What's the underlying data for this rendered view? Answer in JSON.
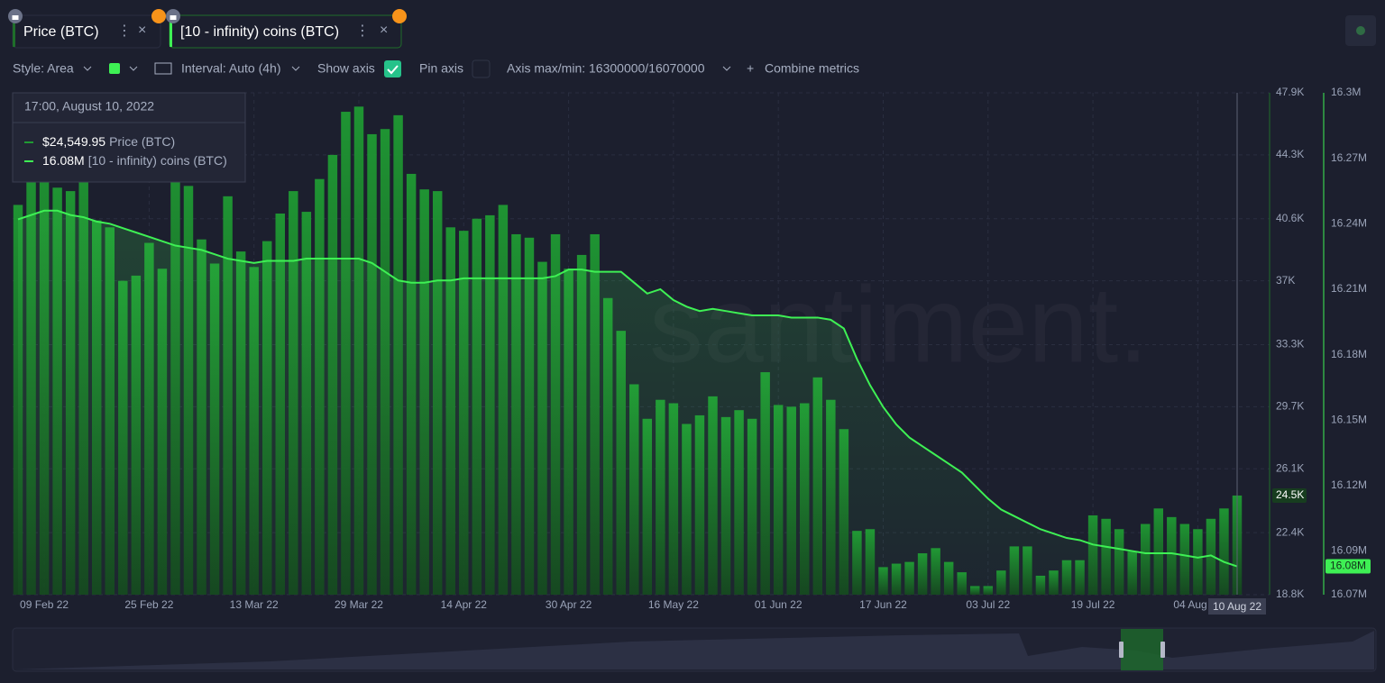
{
  "toolbar": {
    "style": "Style: Area",
    "interval": "Interval: Auto (4h)",
    "show_axis": "Show axis",
    "pin_axis": "Pin axis",
    "axis_maxmin": "Axis max/min: 16300000/16070000",
    "combine": "Combine metrics"
  },
  "chart_data": {
    "type": "combo",
    "watermark": "santiment.",
    "grid": true,
    "categories": [
      null,
      null,
      "09 Feb 22",
      null,
      null,
      null,
      null,
      null,
      null,
      null,
      "25 Feb 22",
      null,
      null,
      null,
      null,
      null,
      null,
      null,
      "13 Mar 22",
      null,
      null,
      null,
      null,
      null,
      null,
      null,
      "29 Mar 22",
      null,
      null,
      null,
      null,
      null,
      null,
      null,
      "14 Apr 22",
      null,
      null,
      null,
      null,
      null,
      null,
      null,
      "30 Apr 22",
      null,
      null,
      null,
      null,
      null,
      null,
      null,
      "16 May 22",
      null,
      null,
      null,
      null,
      null,
      null,
      null,
      "01 Jun 22",
      null,
      null,
      null,
      null,
      null,
      null,
      null,
      "17 Jun 22",
      null,
      null,
      null,
      null,
      null,
      null,
      null,
      "03 Jul 22",
      null,
      null,
      null,
      null,
      null,
      null,
      null,
      "19 Jul 22",
      null,
      null,
      null,
      null,
      null,
      null,
      null,
      "04 Aug 22",
      null,
      null,
      null
    ],
    "crosshair_label": "10 Aug 22",
    "ylim": [
      18800,
      47900
    ],
    "yticks": [
      {
        "value": 18800,
        "label": "18.8K"
      },
      {
        "value": 22400,
        "label": "22.4K"
      },
      {
        "value": 26100,
        "label": "26.1K"
      },
      {
        "value": 29700,
        "label": "29.7K"
      },
      {
        "value": 33300,
        "label": "33.3K"
      },
      {
        "value": 37000,
        "label": "37K"
      },
      {
        "value": 40600,
        "label": "40.6K"
      },
      {
        "value": 44300,
        "label": "44.3K"
      },
      {
        "value": 47900,
        "label": "47.9K"
      }
    ],
    "y2lim": [
      16070000,
      16300000
    ],
    "y2ticks": [
      {
        "value": 16070000,
        "label": "16.07M"
      },
      {
        "value": 16090000,
        "label": "16.09M"
      },
      {
        "value": 16120000,
        "label": "16.12M"
      },
      {
        "value": 16150000,
        "label": "16.15M"
      },
      {
        "value": 16180000,
        "label": "16.18M"
      },
      {
        "value": 16210000,
        "label": "16.21M"
      },
      {
        "value": 16240000,
        "label": "16.24M"
      },
      {
        "value": 16270000,
        "label": "16.27M"
      },
      {
        "value": 16300000,
        "label": "16.3M"
      }
    ],
    "series": [
      {
        "name": "Price (BTC)",
        "type": "bar",
        "color": "#1f9a33",
        "axis_label": "24.5K",
        "values": [
          41400,
          43800,
          44400,
          42400,
          42200,
          44500,
          40500,
          40100,
          37000,
          37300,
          39200,
          37700,
          44400,
          42500,
          39400,
          38000,
          41900,
          38700,
          37800,
          39300,
          40900,
          42200,
          41000,
          42900,
          44300,
          46800,
          47100,
          45500,
          45800,
          46600,
          43200,
          42300,
          42200,
          40100,
          39900,
          40600,
          40800,
          41400,
          39700,
          39500,
          38100,
          39700,
          37700,
          38500,
          39700,
          36000,
          34100,
          31000,
          29000,
          30100,
          29900,
          28700,
          29200,
          30300,
          29100,
          29500,
          29000,
          31700,
          29800,
          29700,
          29900,
          31400,
          30100,
          28400,
          22500,
          22600,
          20400,
          20600,
          20700,
          21200,
          21500,
          20700,
          20100,
          19300,
          19300,
          20200,
          21600,
          21600,
          19900,
          20200,
          20800,
          20800,
          23400,
          23200,
          22600,
          21300,
          22900,
          23800,
          23300,
          22900,
          22600,
          23200,
          23800,
          24549.95
        ]
      },
      {
        "name": "[10 - infinity) coins (BTC)",
        "type": "line",
        "color": "#3ef054",
        "axis": "y2",
        "axis_label": "16.08M",
        "values": [
          16242000,
          16244000,
          16246000,
          16246000,
          16244000,
          16243000,
          16241000,
          16240000,
          16238000,
          16236000,
          16234000,
          16232000,
          16230000,
          16229000,
          16228000,
          16226000,
          16224000,
          16223000,
          16222000,
          16223000,
          16223000,
          16223000,
          16224000,
          16224000,
          16224000,
          16224000,
          16224000,
          16222000,
          16218000,
          16214000,
          16213000,
          16213000,
          16214000,
          16214000,
          16215000,
          16215000,
          16215000,
          16215000,
          16215000,
          16215000,
          16215000,
          16216000,
          16219000,
          16219000,
          16218000,
          16218000,
          16218000,
          16213000,
          16208000,
          16210000,
          16205000,
          16202000,
          16200000,
          16201000,
          16200000,
          16199000,
          16198000,
          16198000,
          16198000,
          16197000,
          16197000,
          16197000,
          16196000,
          16192000,
          16178000,
          16166000,
          16156000,
          16148000,
          16142000,
          16138000,
          16134000,
          16130000,
          16126000,
          16120000,
          16114000,
          16109000,
          16106000,
          16103000,
          16100000,
          16098000,
          16096000,
          16095000,
          16093000,
          16092000,
          16091000,
          16090000,
          16089000,
          16089000,
          16089000,
          16088000,
          16087000,
          16088000,
          16085000,
          16083000
        ]
      }
    ],
    "tooltip": {
      "title": "17:00, August 10, 2022",
      "value_labels": [
        "$24,549.95",
        "16.08M"
      ]
    }
  }
}
